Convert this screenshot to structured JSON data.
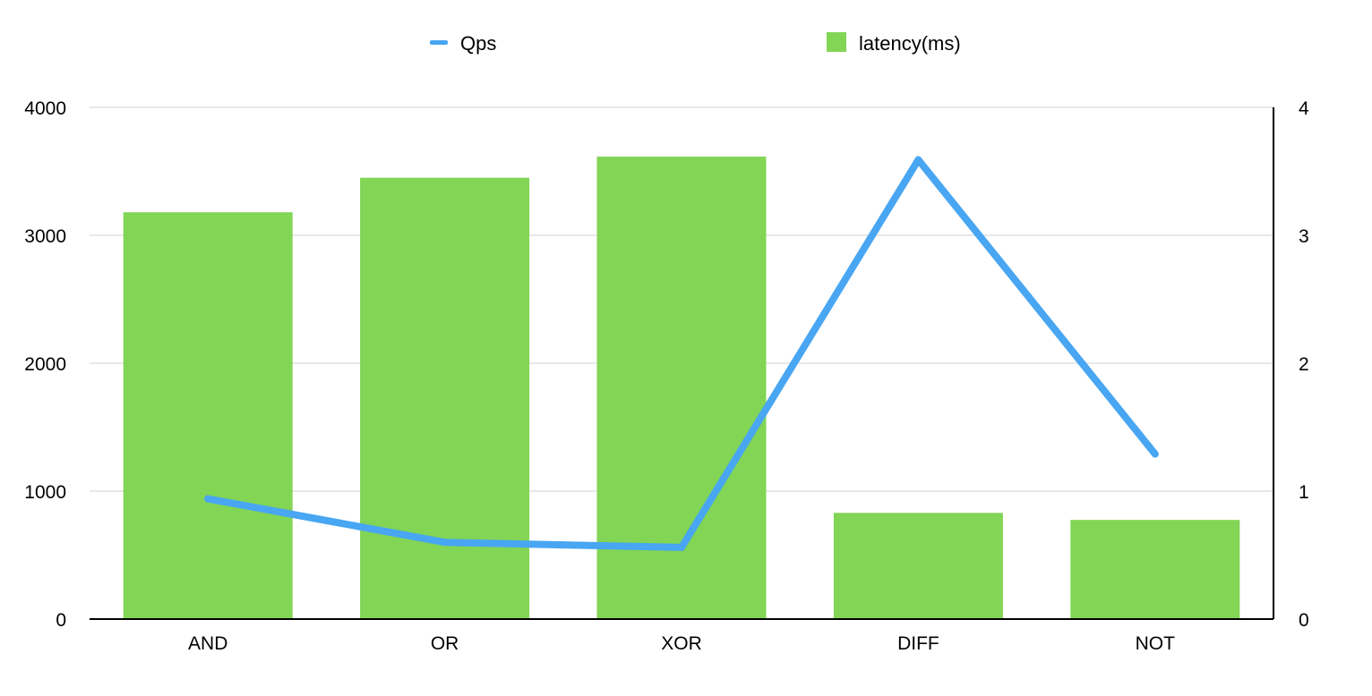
{
  "chart_data": {
    "type": "bar",
    "categories": [
      "AND",
      "OR",
      "XOR",
      "DIFF",
      "NOT"
    ],
    "series": [
      {
        "name": "latency(ms)",
        "type": "bar",
        "axis": "left",
        "color": "#82d555",
        "values": [
          3180,
          3450,
          3615,
          830,
          775
        ]
      },
      {
        "name": "Qps",
        "type": "line",
        "axis": "right",
        "color": "#48a6f2",
        "values": [
          0.94,
          0.6,
          0.56,
          3.59,
          1.29
        ]
      }
    ],
    "y_left": {
      "ylim": [
        0,
        4000
      ],
      "ticks": [
        0,
        1000,
        2000,
        3000,
        4000
      ],
      "tick_labels": [
        "0",
        "1000",
        "2000",
        "3000",
        "4000"
      ]
    },
    "y_right": {
      "ylim": [
        0,
        4
      ],
      "ticks": [
        0,
        1,
        2,
        3,
        4
      ],
      "tick_labels": [
        "0",
        "1",
        "2",
        "3",
        "4"
      ]
    },
    "title": "",
    "xlabel": "",
    "ylabel": "",
    "grid": true,
    "legend": {
      "position": "top-center",
      "items": [
        {
          "label": "Qps",
          "marker": "line",
          "color": "#48a6f2"
        },
        {
          "label": "latency(ms)",
          "marker": "square",
          "color": "#82d555"
        }
      ]
    }
  }
}
